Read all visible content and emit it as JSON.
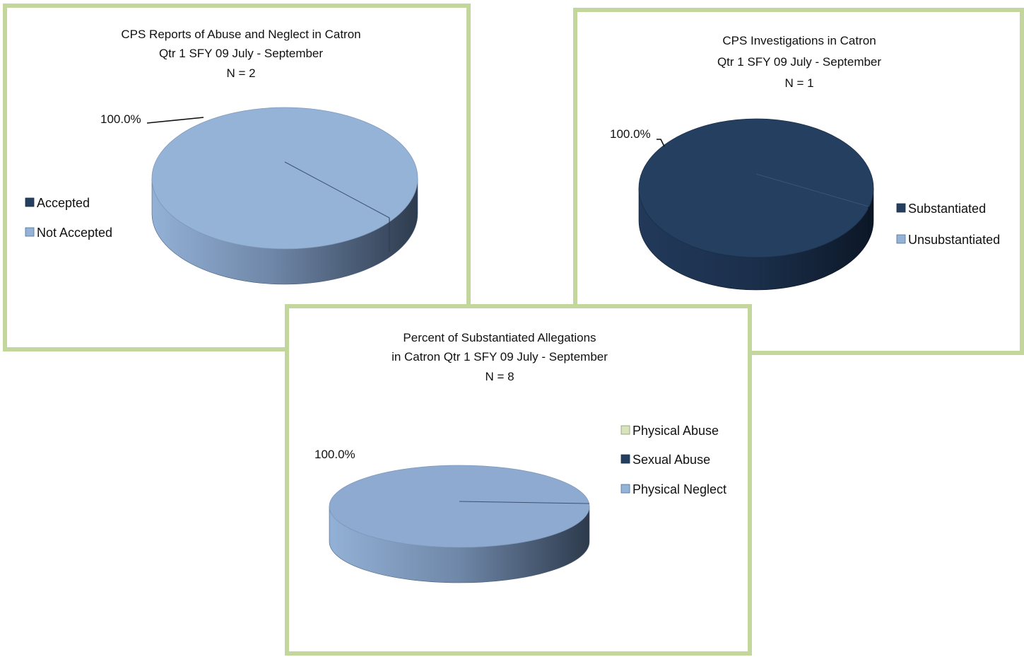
{
  "chart_data": [
    {
      "type": "pie",
      "title": [
        "CPS Reports of Abuse and Neglect in Catron",
        "Qtr 1 SFY 09 July - September",
        "N = 2"
      ],
      "categories": [
        "Accepted",
        "Not Accepted"
      ],
      "values": [
        0.0,
        100.0
      ],
      "data_labels": [
        "",
        "100.0%"
      ],
      "colors": [
        "#243f60",
        "#95b3d7"
      ],
      "legend_position": "left",
      "three_d": true
    },
    {
      "type": "pie",
      "title": [
        "CPS Investigations in Catron",
        "Qtr 1 SFY 09 July - September",
        "N = 1"
      ],
      "categories": [
        "Substantiated",
        "Unsubstantiated"
      ],
      "values": [
        100.0,
        0.0
      ],
      "data_labels": [
        "100.0%",
        ""
      ],
      "colors": [
        "#243f60",
        "#95b3d7"
      ],
      "legend_position": "right",
      "three_d": true
    },
    {
      "type": "pie",
      "title": [
        "Percent of Substantiated Allegations",
        "in Catron Qtr 1 SFY 09 July - September",
        "N = 8"
      ],
      "categories": [
        "Physical Abuse",
        "Sexual Abuse",
        "Physical Neglect"
      ],
      "values": [
        0.0,
        0.0,
        100.0
      ],
      "data_labels": [
        "",
        "",
        "100.0%"
      ],
      "colors": [
        "#d7e4bd",
        "#243f60",
        "#95b3d7"
      ],
      "legend_position": "right",
      "three_d": true
    }
  ]
}
